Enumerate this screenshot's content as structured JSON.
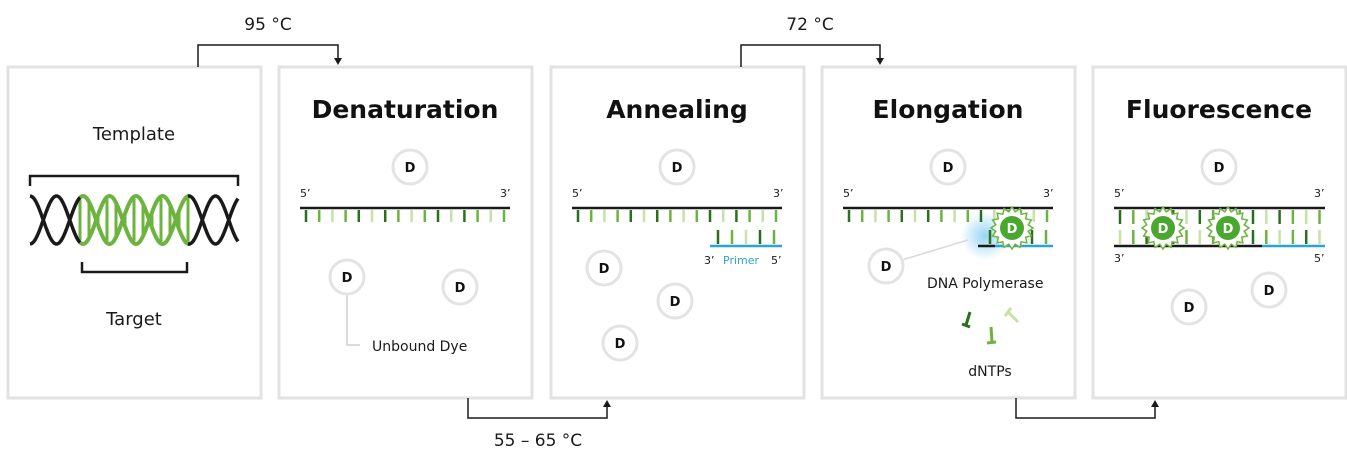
{
  "temperatures": {
    "denature": "95 °C",
    "anneal": "55 – 65 °C",
    "elongate": "72 °C"
  },
  "template_panel": {
    "top_label": "Template",
    "bottom_label": "Target"
  },
  "panels": {
    "denaturation": {
      "title": "Denaturation",
      "strand_5": "5’",
      "strand_3": "3’",
      "dye_label": "Unbound Dye"
    },
    "annealing": {
      "title": "Annealing",
      "strand_5": "5’",
      "strand_3": "3’",
      "primer_3": "3’",
      "primer_word": "Primer",
      "primer_5": "5’"
    },
    "elongation": {
      "title": "Elongation",
      "strand_5": "5’",
      "strand_3": "3’",
      "polymerase_label": "DNA Polymerase",
      "dntps_label": "dNTPs"
    },
    "fluorescence": {
      "title": "Fluorescence",
      "top_5": "5’",
      "top_3": "3’",
      "bottom_3": "3’",
      "bottom_5": "5’"
    }
  },
  "dye": {
    "letter": "D"
  },
  "colors": {
    "panel_border": "#e2e2e2",
    "dark_green": "#2c6e1f",
    "mid_green": "#6db33f",
    "light_green": "#c6e2a6",
    "primer_blue": "#29a3d8",
    "glow_blue": "#8fd3f4",
    "dye_bright": "#4aa82e"
  }
}
